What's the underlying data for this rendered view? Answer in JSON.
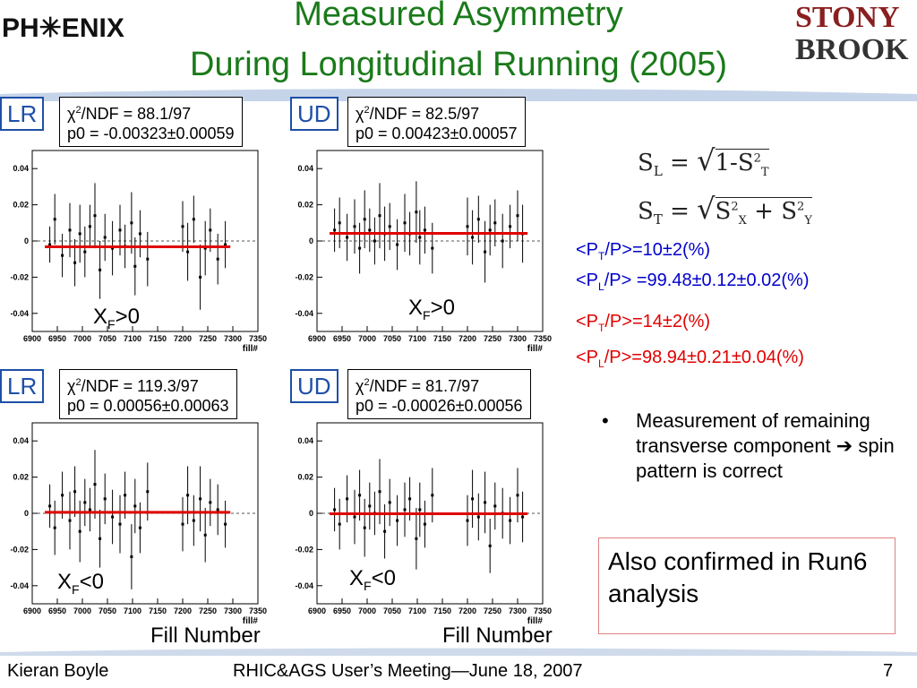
{
  "header": {
    "logo_left": "PH✳ENIX",
    "title_line1": "Measured Asymmetry",
    "title_line2": "During Longitudinal Running (2005)",
    "logo_right_line1": "STONY",
    "logo_right_line2": "BROOK"
  },
  "colors": {
    "title": "#1a7a1a",
    "fit_line": "#e00000",
    "tag_border": "#1e4fa8",
    "blue_text": "#0000cc",
    "red_text": "#e00000"
  },
  "chart_data": [
    {
      "type": "scatter",
      "tag": "LR",
      "fit_chi2": "/NDF = 88.1/97",
      "fit_p0": "p0 = -0.00323±0.00059",
      "p0": -0.00323,
      "region": "F>0",
      "xlabel": "fill#",
      "xlim": [
        6900,
        7350
      ],
      "ylim": [
        -0.05,
        0.05
      ],
      "x_ticks": [
        "6900",
        "6950",
        "7000",
        "7050",
        "7100",
        "7150",
        "7200",
        "7250",
        "7300",
        "7350"
      ],
      "y_ticks": [
        "0.04",
        "0.02",
        "0",
        "-0.02",
        "-0.04"
      ],
      "x": [
        6935,
        6945,
        6960,
        6975,
        6985,
        6995,
        7005,
        7015,
        7025,
        7035,
        7045,
        7060,
        7075,
        7085,
        7098,
        7105,
        7115,
        7130,
        7200,
        7210,
        7222,
        7235,
        7245,
        7255,
        7270,
        7285
      ],
      "y": [
        -0.002,
        0.012,
        -0.008,
        0.006,
        -0.012,
        0.004,
        -0.006,
        0.008,
        0.014,
        -0.016,
        0.002,
        -0.004,
        0.006,
        -0.003,
        0.01,
        -0.014,
        0.004,
        -0.01,
        0.008,
        -0.006,
        0.012,
        -0.02,
        -0.004,
        0.006,
        -0.01,
        -0.002
      ],
      "err": [
        0.01,
        0.014,
        0.012,
        0.015,
        0.013,
        0.016,
        0.014,
        0.012,
        0.018,
        0.016,
        0.013,
        0.015,
        0.014,
        0.012,
        0.017,
        0.016,
        0.013,
        0.015,
        0.014,
        0.016,
        0.013,
        0.018,
        0.015,
        0.012,
        0.014,
        0.013
      ]
    },
    {
      "type": "scatter",
      "tag": "UD",
      "fit_chi2": "/NDF = 82.5/97",
      "fit_p0": "p0 = 0.00423±0.00057",
      "p0": 0.00423,
      "region": "F>0",
      "xlabel": "fill#",
      "xlim": [
        6900,
        7350
      ],
      "ylim": [
        -0.05,
        0.05
      ],
      "x_ticks": [
        "6900",
        "6950",
        "7000",
        "7050",
        "7100",
        "7150",
        "7200",
        "7250",
        "7300",
        "7350"
      ],
      "y_ticks": [
        "0.04",
        "0.02",
        "0",
        "-0.02",
        "-0.04"
      ],
      "x": [
        6935,
        6945,
        6960,
        6975,
        6985,
        6995,
        7005,
        7015,
        7025,
        7035,
        7045,
        7060,
        7075,
        7085,
        7098,
        7105,
        7115,
        7130,
        7200,
        7210,
        7222,
        7235,
        7245,
        7255,
        7270,
        7285,
        7300,
        7310
      ],
      "y": [
        0.006,
        0.01,
        0.002,
        0.008,
        -0.004,
        0.012,
        0.006,
        0.0,
        0.014,
        0.004,
        0.008,
        -0.002,
        0.01,
        0.004,
        0.016,
        0.002,
        0.006,
        -0.004,
        0.008,
        0.002,
        0.012,
        -0.006,
        0.006,
        0.01,
        0.0,
        0.008,
        0.014,
        0.004
      ],
      "err": [
        0.012,
        0.014,
        0.013,
        0.015,
        0.014,
        0.016,
        0.012,
        0.013,
        0.018,
        0.015,
        0.013,
        0.014,
        0.016,
        0.012,
        0.017,
        0.015,
        0.013,
        0.014,
        0.016,
        0.015,
        0.013,
        0.017,
        0.014,
        0.013,
        0.015,
        0.012,
        0.014,
        0.016
      ]
    },
    {
      "type": "scatter",
      "tag": "LR",
      "fit_chi2": "/NDF = 119.3/97",
      "fit_p0": "p0 = 0.00056±0.00063",
      "p0": 0.00056,
      "region": "F<0",
      "xlabel": "fill#",
      "xlim": [
        6900,
        7350
      ],
      "ylim": [
        -0.05,
        0.05
      ],
      "x_ticks": [
        "6900",
        "6950",
        "7000",
        "7050",
        "7100",
        "7150",
        "7200",
        "7250",
        "7300",
        "7350"
      ],
      "y_ticks": [
        "0.04",
        "0.02",
        "0",
        "-0.02",
        "-0.04"
      ],
      "x": [
        6935,
        6945,
        6960,
        6975,
        6985,
        6995,
        7005,
        7015,
        7025,
        7035,
        7045,
        7060,
        7075,
        7085,
        7098,
        7105,
        7115,
        7130,
        7200,
        7210,
        7222,
        7235,
        7245,
        7255,
        7270,
        7285
      ],
      "y": [
        0.004,
        -0.008,
        0.01,
        -0.004,
        0.012,
        -0.01,
        0.006,
        0.002,
        0.016,
        -0.014,
        0.008,
        -0.002,
        -0.006,
        0.01,
        -0.024,
        0.004,
        -0.008,
        0.012,
        -0.006,
        0.01,
        -0.004,
        0.008,
        -0.012,
        0.006,
        0.002,
        -0.006
      ],
      "err": [
        0.012,
        0.015,
        0.013,
        0.016,
        0.014,
        0.017,
        0.013,
        0.012,
        0.019,
        0.016,
        0.014,
        0.015,
        0.016,
        0.013,
        0.018,
        0.015,
        0.014,
        0.016,
        0.015,
        0.016,
        0.014,
        0.018,
        0.015,
        0.013,
        0.014,
        0.013
      ]
    },
    {
      "type": "scatter",
      "tag": "UD",
      "fit_chi2": "/NDF = 81.7/97",
      "fit_p0": "p0 = -0.00026±0.00056",
      "p0": -0.00026,
      "region": "F<0",
      "xlabel": "fill#",
      "xlim": [
        6900,
        7350
      ],
      "ylim": [
        -0.05,
        0.05
      ],
      "x_ticks": [
        "6900",
        "6950",
        "7000",
        "7050",
        "7100",
        "7150",
        "7200",
        "7250",
        "7300",
        "7350"
      ],
      "y_ticks": [
        "0.04",
        "0.02",
        "0",
        "-0.02",
        "-0.04"
      ],
      "x": [
        6935,
        6945,
        6960,
        6975,
        6985,
        6995,
        7005,
        7015,
        7025,
        7035,
        7045,
        7060,
        7075,
        7085,
        7098,
        7105,
        7115,
        7130,
        7200,
        7210,
        7222,
        7235,
        7245,
        7255,
        7270,
        7285,
        7300,
        7310
      ],
      "y": [
        0.002,
        -0.006,
        0.008,
        -0.002,
        0.01,
        -0.008,
        0.004,
        0.0,
        0.012,
        -0.01,
        0.006,
        -0.004,
        0.002,
        0.008,
        -0.014,
        0.002,
        -0.006,
        0.01,
        -0.004,
        0.008,
        -0.002,
        0.006,
        -0.018,
        0.004,
        0.0,
        -0.004,
        0.01,
        -0.002
      ],
      "err": [
        0.012,
        0.014,
        0.013,
        0.015,
        0.014,
        0.016,
        0.013,
        0.012,
        0.018,
        0.015,
        0.013,
        0.014,
        0.015,
        0.012,
        0.017,
        0.015,
        0.013,
        0.015,
        0.014,
        0.016,
        0.013,
        0.017,
        0.015,
        0.013,
        0.014,
        0.013,
        0.015,
        0.014
      ]
    }
  ],
  "formulas": {
    "sl": "S",
    "sl_sub": "L",
    "eq1": " = ",
    "sqrt1": "1-S",
    "sqrt1_sub": "T",
    "sqrt1_sup": "2",
    "st": "S",
    "st_sub": "T",
    "eq2": " = ",
    "sqrt2a": "S",
    "sqrt2a_sub": "X",
    "sqrt2a_sup": "2",
    "plus": " + S",
    "sqrt2b_sub": "Y",
    "sqrt2b_sup": "2"
  },
  "polarization": {
    "blue1_a": "<P",
    "blue1_sub": "T",
    "blue1_b": "/P>=10±2(%)",
    "blue2_a": "<P",
    "blue2_sub": "L",
    "blue2_b": "/P> =99.48±0.12±0.02(%)",
    "red1_a": "<P",
    "red1_sub": "T",
    "red1_b": "/P>=14±2(%)",
    "red2_a": "<P",
    "red2_sub": "L",
    "red2_b": "/P>=98.94±0.21±0.04(%)"
  },
  "chi_symbol": "χ",
  "chi_sup": "2",
  "xf_main": "X",
  "xf_sub": "F",
  "bullet": {
    "dot": "•",
    "text1": "Measurement of remaining transverse component",
    "arrow": "➔",
    "text2": "spin pattern is correct"
  },
  "confirm_box": "Also confirmed in Run6 analysis",
  "axis_footer": {
    "left": "Fill Number",
    "right": "Fill Number"
  },
  "footer": {
    "author": "Kieran Boyle",
    "meeting": "RHIC&AGS User’s Meeting—June 18, 2007",
    "page": "7"
  }
}
